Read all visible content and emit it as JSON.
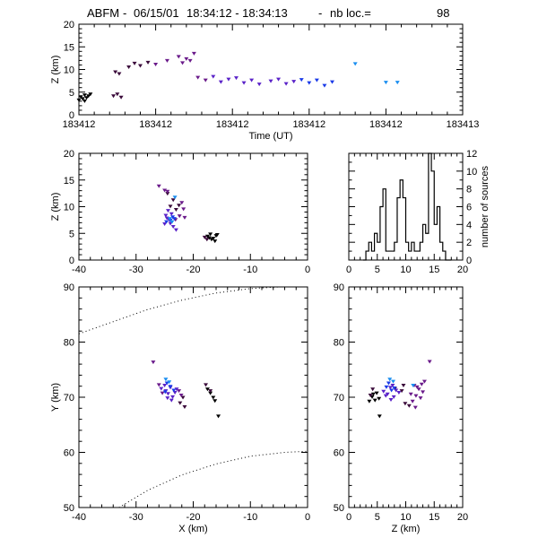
{
  "title": {
    "station": "ABFM",
    "date": "06/15/01",
    "time_range": "18:34:12 - 18:34:13",
    "count_label": "nb loc.=",
    "count": "98"
  },
  "chart_data": [
    {
      "id": "time_height",
      "type": "scatter",
      "xlabel": "Time (UT)",
      "ylabel": "Z (km)",
      "xlim": [
        0,
        1
      ],
      "ylim": [
        0,
        20
      ],
      "x_tick_labels": [
        "183412",
        "183412",
        "183412",
        "183412",
        "183412",
        "183413"
      ],
      "y_ticks": [
        0,
        5,
        10,
        15,
        20
      ],
      "series": [
        {
          "color": "#000000",
          "points": [
            [
              0.0,
              3.3
            ],
            [
              0.005,
              4.0
            ],
            [
              0.01,
              3.6
            ],
            [
              0.015,
              4.4
            ],
            [
              0.02,
              3.8
            ],
            [
              0.025,
              4.2
            ],
            [
              0.03,
              4.6
            ],
            [
              0.015,
              3.1
            ]
          ]
        },
        {
          "color": "#3a0a3a",
          "points": [
            [
              0.09,
              4.2
            ],
            [
              0.1,
              4.6
            ],
            [
              0.11,
              3.9
            ],
            [
              0.095,
              9.5
            ],
            [
              0.105,
              9.1
            ],
            [
              0.13,
              10.6
            ],
            [
              0.145,
              11.4
            ],
            [
              0.16,
              10.9
            ],
            [
              0.18,
              11.6
            ]
          ]
        },
        {
          "color": "#6a1a8a",
          "points": [
            [
              0.2,
              11.2
            ],
            [
              0.23,
              12.0
            ],
            [
              0.26,
              12.9
            ],
            [
              0.28,
              12.4
            ],
            [
              0.3,
              13.6
            ],
            [
              0.29,
              12.0
            ],
            [
              0.27,
              11.5
            ],
            [
              0.31,
              8.3
            ],
            [
              0.33,
              7.7
            ]
          ]
        },
        {
          "color": "#5a22c8",
          "points": [
            [
              0.35,
              8.5
            ],
            [
              0.37,
              7.3
            ],
            [
              0.39,
              7.9
            ],
            [
              0.41,
              8.2
            ],
            [
              0.43,
              7.1
            ],
            [
              0.45,
              7.7
            ],
            [
              0.47,
              6.8
            ],
            [
              0.5,
              7.5
            ],
            [
              0.52,
              7.9
            ],
            [
              0.54,
              6.9
            ],
            [
              0.56,
              7.4
            ]
          ]
        },
        {
          "color": "#1a3ae8",
          "points": [
            [
              0.58,
              7.8
            ],
            [
              0.6,
              7.1
            ],
            [
              0.62,
              7.7
            ],
            [
              0.64,
              6.5
            ],
            [
              0.66,
              7.3
            ]
          ]
        },
        {
          "color": "#1a8ef0",
          "points": [
            [
              0.72,
              11.3
            ],
            [
              0.8,
              7.2
            ],
            [
              0.83,
              7.2
            ]
          ]
        }
      ]
    },
    {
      "id": "xz",
      "type": "scatter",
      "xlabel": "",
      "ylabel": "Z (km)",
      "xlim": [
        -40,
        0
      ],
      "ylim": [
        0,
        20
      ],
      "x_ticks": [
        -40,
        -30,
        -20,
        -10,
        0
      ],
      "y_ticks": [
        0,
        5,
        10,
        15,
        20
      ],
      "series": [
        {
          "color": "#000000",
          "points": [
            [
              -17.5,
              4.5
            ],
            [
              -17.0,
              4.9
            ],
            [
              -16.5,
              4.1
            ],
            [
              -16.0,
              4.6
            ],
            [
              -16.2,
              3.6
            ],
            [
              -15.8,
              4.8
            ],
            [
              -17.2,
              4.2
            ],
            [
              -16.8,
              3.9
            ]
          ]
        },
        {
          "color": "#3a0a3a",
          "points": [
            [
              -18.0,
              4.3
            ],
            [
              -17.6,
              3.9
            ],
            [
              -24.5,
              12.5
            ],
            [
              -23.5,
              11.3
            ],
            [
              -22.5,
              10.3
            ],
            [
              -24.0,
              10.1
            ],
            [
              -23.0,
              9.5
            ]
          ]
        },
        {
          "color": "#6a1a8a",
          "points": [
            [
              -26.0,
              13.9
            ],
            [
              -25.0,
              13.1
            ],
            [
              -24.5,
              12.9
            ],
            [
              -22.0,
              10.8
            ],
            [
              -21.7,
              9.6
            ],
            [
              -22.4,
              8.3
            ],
            [
              -23.1,
              7.6
            ],
            [
              -21.5,
              8.0
            ]
          ]
        },
        {
          "color": "#5a22c8",
          "points": [
            [
              -24.8,
              8.4
            ],
            [
              -24.2,
              7.6
            ],
            [
              -24.0,
              6.9
            ],
            [
              -23.5,
              6.3
            ],
            [
              -23.0,
              5.7
            ],
            [
              -25.0,
              6.8
            ],
            [
              -24.6,
              7.9
            ],
            [
              -23.8,
              8.7
            ],
            [
              -24.4,
              9.3
            ]
          ]
        },
        {
          "color": "#1a3ae8",
          "points": [
            [
              -24.0,
              7.5
            ],
            [
              -23.3,
              7.8
            ],
            [
              -24.7,
              7.2
            ],
            [
              -23.6,
              8.1
            ]
          ]
        },
        {
          "color": "#1a8ef0",
          "points": [
            [
              -23.2,
              11.8
            ],
            [
              -24.1,
              7.8
            ],
            [
              -23.7,
              7.2
            ]
          ]
        }
      ]
    },
    {
      "id": "z_hist",
      "type": "bar",
      "xlabel": "",
      "ylabel": "number of sources",
      "xlim": [
        0,
        20
      ],
      "ylim": [
        0,
        12
      ],
      "x_ticks": [
        0,
        5,
        10,
        15,
        20
      ],
      "y_ticks": [
        0,
        2,
        4,
        6,
        8,
        10,
        12
      ],
      "bin_width": 0.5,
      "bin_edges_start": 2.5,
      "values": [
        0,
        1,
        2,
        1,
        3,
        2,
        6,
        8,
        1,
        1,
        1,
        2,
        7,
        9,
        7,
        2,
        1,
        2,
        1,
        1,
        2,
        4,
        3,
        12,
        10,
        4,
        6,
        2,
        1,
        0,
        0
      ]
    },
    {
      "id": "xy",
      "type": "scatter",
      "xlabel": "X (km)",
      "ylabel": "Y (km)",
      "xlim": [
        -40,
        0
      ],
      "ylim": [
        50,
        90
      ],
      "x_ticks": [
        -40,
        -30,
        -20,
        -10,
        0
      ],
      "y_ticks": [
        50,
        60,
        70,
        80,
        90
      ],
      "series": [
        {
          "color": "#000000",
          "points": [
            [
              -17.5,
              71.5
            ],
            [
              -17.0,
              70.8
            ],
            [
              -16.5,
              70.0
            ],
            [
              -16.2,
              69.4
            ],
            [
              -15.6,
              66.6
            ]
          ]
        },
        {
          "color": "#3a0a3a",
          "points": [
            [
              -17.8,
              72.3
            ],
            [
              -17.0,
              71.2
            ],
            [
              -21.5,
              68.3
            ],
            [
              -22.3,
              69.0
            ],
            [
              -21.8,
              70.0
            ]
          ]
        },
        {
          "color": "#6a1a8a",
          "points": [
            [
              -27.0,
              76.4
            ],
            [
              -26.0,
              72.3
            ],
            [
              -25.4,
              70.8
            ],
            [
              -22.5,
              71.2
            ],
            [
              -22.1,
              70.4
            ]
          ]
        },
        {
          "color": "#5a22c8",
          "points": [
            [
              -25.6,
              71.6
            ],
            [
              -24.8,
              71.2
            ],
            [
              -24.4,
              70.7
            ],
            [
              -24.0,
              71.8
            ],
            [
              -23.6,
              70.1
            ],
            [
              -23.2,
              70.9
            ],
            [
              -22.9,
              71.5
            ],
            [
              -24.5,
              69.9
            ],
            [
              -23.8,
              69.5
            ],
            [
              -25.0,
              72.2
            ]
          ]
        },
        {
          "color": "#1a3ae8",
          "points": [
            [
              -24.6,
              72.6
            ],
            [
              -24.0,
              72.0
            ],
            [
              -23.4,
              71.3
            ],
            [
              -24.9,
              71.0
            ]
          ]
        },
        {
          "color": "#1a8ef0",
          "points": [
            [
              -24.8,
              73.3
            ],
            [
              -24.2,
              72.8
            ]
          ]
        }
      ],
      "curves": [
        {
          "points": [
            [
              -40,
              81.5
            ],
            [
              -34,
              83.7
            ],
            [
              -28,
              85.9
            ],
            [
              -22,
              87.6
            ],
            [
              -16,
              88.9
            ],
            [
              -10,
              89.7
            ],
            [
              -5,
              90
            ]
          ]
        },
        {
          "points": [
            [
              -33,
              50
            ],
            [
              -28,
              53.1
            ],
            [
              -22,
              55.9
            ],
            [
              -16,
              57.9
            ],
            [
              -10,
              59.3
            ],
            [
              -4,
              60.0
            ],
            [
              0,
              60.2
            ]
          ]
        }
      ]
    },
    {
      "id": "zy",
      "type": "scatter",
      "xlabel": "Z (km)",
      "ylabel": "",
      "xlim": [
        0,
        20
      ],
      "ylim": [
        50,
        90
      ],
      "x_ticks": [
        0,
        5,
        10,
        15,
        20
      ],
      "y_ticks": [
        50,
        60,
        70,
        80,
        90
      ],
      "series": [
        {
          "color": "#000000",
          "points": [
            [
              3.6,
              69.3
            ],
            [
              4.1,
              70.1
            ],
            [
              4.6,
              69.5
            ],
            [
              4.3,
              70.6
            ],
            [
              4.9,
              70.8
            ],
            [
              5.3,
              69.8
            ],
            [
              5.4,
              66.6
            ]
          ]
        },
        {
          "color": "#3a0a3a",
          "points": [
            [
              4.2,
              71.5
            ],
            [
              3.8,
              70.4
            ],
            [
              9.6,
              72.2
            ],
            [
              9.3,
              71.2
            ],
            [
              8.1,
              71.6
            ],
            [
              10.6,
              68.5
            ],
            [
              9.9,
              68.9
            ]
          ]
        },
        {
          "color": "#6a1a8a",
          "points": [
            [
              14.2,
              76.5
            ],
            [
              11.5,
              72.2
            ],
            [
              12.3,
              71.5
            ],
            [
              11.8,
              70.3
            ],
            [
              12.8,
              72.4
            ],
            [
              13.0,
              71.0
            ],
            [
              12.6,
              69.9
            ],
            [
              11.2,
              69.3
            ],
            [
              10.9,
              70.6
            ],
            [
              11.7,
              68.2
            ],
            [
              12.0,
              71.9
            ],
            [
              13.3,
              72.9
            ]
          ]
        },
        {
          "color": "#5a22c8",
          "points": [
            [
              6.8,
              70.6
            ],
            [
              7.3,
              71.8
            ],
            [
              7.9,
              70.1
            ],
            [
              6.5,
              70.3
            ],
            [
              8.3,
              71.3
            ],
            [
              7.4,
              69.6
            ],
            [
              8.8,
              70.9
            ],
            [
              6.1,
              71.1
            ],
            [
              7.7,
              72.2
            ]
          ]
        },
        {
          "color": "#1a3ae8",
          "points": [
            [
              7.5,
              71.3
            ],
            [
              7.0,
              72.6
            ],
            [
              8.0,
              71.7
            ],
            [
              6.6,
              71.9
            ]
          ]
        },
        {
          "color": "#1a8ef0",
          "points": [
            [
              7.2,
              73.3
            ],
            [
              7.8,
              72.9
            ],
            [
              11.3,
              72.2
            ]
          ]
        }
      ]
    }
  ]
}
